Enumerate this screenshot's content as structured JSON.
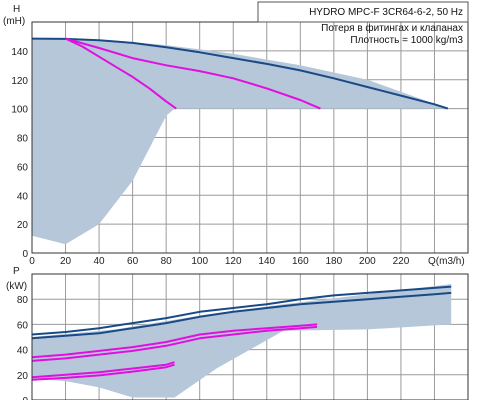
{
  "chart_data": [
    {
      "type": "line",
      "title": "HYDRO MPC-F 3CR64-6-2, 50 Hz",
      "annotations": [
        "Потеря в фитингах и клапанах",
        "Плотность = 1000 kg/m3"
      ],
      "ylabel_top": "H",
      "ylabel_unit": "(mH)",
      "xlabel": "Q(m3/h)",
      "xlim": [
        0,
        260
      ],
      "ylim": [
        0,
        160
      ],
      "x_ticks": [
        "0",
        "20",
        "40",
        "60",
        "80",
        "100",
        "120",
        "140",
        "160",
        "180",
        "200",
        "220"
      ],
      "y_ticks": [
        "0",
        "20",
        "40",
        "60",
        "80",
        "100",
        "120",
        "140"
      ],
      "grid": true,
      "colors": {
        "head_curve": "#1a4a86",
        "system_curve": "#e010e0",
        "operating_area": "#b5c7d9"
      },
      "operating_area": {
        "x": [
          0,
          20,
          40,
          60,
          80,
          85,
          100,
          140,
          180,
          220,
          248,
          248,
          200,
          160,
          120,
          100,
          80,
          60,
          40,
          20,
          0
        ],
        "y": [
          12,
          6,
          20,
          50,
          95,
          100,
          100,
          100,
          100,
          100,
          100,
          100,
          120,
          130,
          138,
          141,
          144,
          146,
          147,
          148,
          148
        ]
      },
      "series": [
        {
          "role": "head_curve",
          "x": [
            0,
            20,
            40,
            60,
            80,
            100,
            120,
            140,
            160,
            180,
            200,
            220,
            240,
            248
          ],
          "y": [
            148.5,
            148.3,
            147.3,
            145.5,
            142.5,
            139,
            135,
            131,
            126.5,
            121,
            115,
            109,
            103,
            100
          ]
        },
        {
          "role": "system_curve",
          "x": [
            20,
            30,
            40,
            50,
            60,
            70,
            80,
            86
          ],
          "y": [
            148.5,
            143,
            136,
            129,
            122,
            114,
            105,
            100
          ]
        },
        {
          "role": "system_curve",
          "x": [
            20,
            40,
            60,
            80,
            100,
            120,
            140,
            160,
            172
          ],
          "y": [
            148.5,
            142,
            135,
            130,
            126,
            121,
            114,
            106,
            100
          ]
        }
      ]
    },
    {
      "type": "line",
      "ylabel_top": "P",
      "ylabel_unit": "(kW)",
      "xlim": [
        0,
        260
      ],
      "ylim": [
        0,
        100
      ],
      "y_ticks": [
        "0",
        "20",
        "40",
        "60",
        "80"
      ],
      "grid": true,
      "colors": {
        "power_curve": "#1a4a86",
        "system_power": "#e010e0",
        "operating_area": "#b5c7d9"
      },
      "operating_area": {
        "x": [
          0,
          20,
          40,
          60,
          80,
          85,
          110,
          150,
          200,
          250,
          250,
          200,
          150,
          100,
          50,
          0
        ],
        "y": [
          17,
          15,
          10,
          2,
          2,
          2,
          25,
          55,
          56,
          60,
          92,
          84,
          76,
          67,
          56,
          50
        ]
      },
      "series": [
        {
          "role": "power_curve",
          "x": [
            0,
            20,
            40,
            60,
            80,
            100,
            120,
            140,
            160,
            180,
            200,
            220,
            240,
            250
          ],
          "y": [
            52,
            54,
            57,
            61,
            65,
            70,
            73,
            76,
            80,
            83,
            85,
            87,
            89,
            90
          ]
        },
        {
          "role": "power_curve",
          "x": [
            0,
            20,
            40,
            60,
            80,
            100,
            120,
            140,
            160,
            180,
            200,
            220,
            240,
            250
          ],
          "y": [
            49,
            51,
            53,
            57,
            61,
            66,
            70,
            73,
            76,
            78,
            80,
            82,
            84,
            85
          ]
        },
        {
          "role": "system_power",
          "x": [
            0,
            20,
            40,
            60,
            80,
            100,
            120,
            140,
            160,
            170
          ],
          "y": [
            34,
            36,
            39,
            42,
            46,
            52,
            55,
            57,
            59,
            60
          ]
        },
        {
          "role": "system_power",
          "x": [
            0,
            20,
            40,
            60,
            80,
            100,
            120,
            140,
            160,
            170
          ],
          "y": [
            31,
            33,
            36,
            39,
            43,
            49,
            52,
            55,
            57,
            58
          ]
        },
        {
          "role": "system_power",
          "x": [
            0,
            20,
            40,
            60,
            80,
            85
          ],
          "y": [
            18,
            20,
            22,
            25,
            28,
            30
          ]
        },
        {
          "role": "system_power",
          "x": [
            0,
            20,
            40,
            60,
            80,
            85
          ],
          "y": [
            16,
            17.5,
            19.5,
            22.5,
            26,
            28
          ]
        }
      ]
    }
  ]
}
